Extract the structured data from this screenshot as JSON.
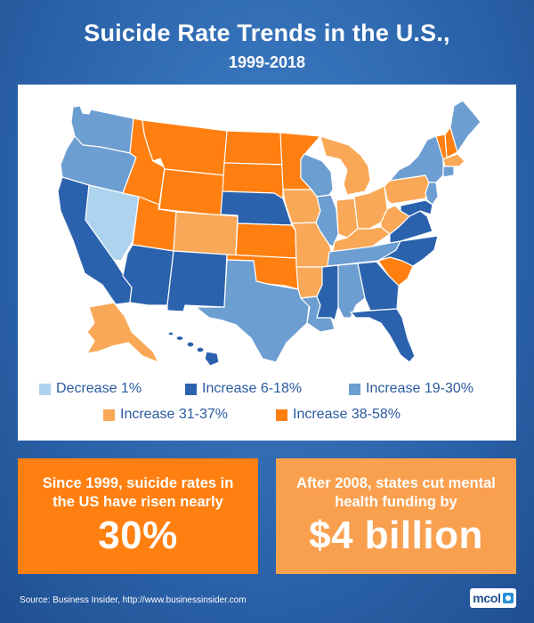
{
  "title": "Suicide Rate Trends in the U.S.,",
  "subtitle": "1999-2018",
  "colors": {
    "decrease": "#aed3ee",
    "increase_6_18": "#2b62ae",
    "increase_19_30": "#6c9ed2",
    "increase_31_37": "#f9a857",
    "increase_38_58": "#ff7f10"
  },
  "legend": [
    {
      "label": "Decrease 1%",
      "category": "decrease"
    },
    {
      "label": "Increase 6-18%",
      "category": "increase_6_18"
    },
    {
      "label": "Increase 19-30%",
      "category": "increase_19_30"
    },
    {
      "label": "Increase 31-37%",
      "category": "increase_31_37"
    },
    {
      "label": "Increase 38-58%",
      "category": "increase_38_58"
    }
  ],
  "states": [
    {
      "name": "washington",
      "category": "increase_19_30"
    },
    {
      "name": "oregon",
      "category": "increase_19_30"
    },
    {
      "name": "california",
      "category": "increase_6_18"
    },
    {
      "name": "nevada",
      "category": "decrease"
    },
    {
      "name": "idaho",
      "category": "increase_38_58"
    },
    {
      "name": "montana",
      "category": "increase_38_58"
    },
    {
      "name": "wyoming",
      "category": "increase_38_58"
    },
    {
      "name": "utah",
      "category": "increase_38_58"
    },
    {
      "name": "arizona",
      "category": "increase_6_18"
    },
    {
      "name": "colorado",
      "category": "increase_31_37"
    },
    {
      "name": "new-mexico",
      "category": "increase_6_18"
    },
    {
      "name": "north-dakota",
      "category": "increase_38_58"
    },
    {
      "name": "south-dakota",
      "category": "increase_38_58"
    },
    {
      "name": "nebraska",
      "category": "increase_6_18"
    },
    {
      "name": "kansas",
      "category": "increase_38_58"
    },
    {
      "name": "oklahoma",
      "category": "increase_38_58"
    },
    {
      "name": "texas",
      "category": "increase_19_30"
    },
    {
      "name": "minnesota",
      "category": "increase_38_58"
    },
    {
      "name": "iowa",
      "category": "increase_31_37"
    },
    {
      "name": "missouri",
      "category": "increase_31_37"
    },
    {
      "name": "arkansas",
      "category": "increase_31_37"
    },
    {
      "name": "louisiana",
      "category": "increase_19_30"
    },
    {
      "name": "wisconsin",
      "category": "increase_19_30"
    },
    {
      "name": "illinois",
      "category": "increase_19_30"
    },
    {
      "name": "michigan",
      "category": "increase_31_37"
    },
    {
      "name": "indiana",
      "category": "increase_31_37"
    },
    {
      "name": "ohio",
      "category": "increase_31_37"
    },
    {
      "name": "kentucky",
      "category": "increase_31_37"
    },
    {
      "name": "tennessee",
      "category": "increase_19_30"
    },
    {
      "name": "mississippi",
      "category": "increase_6_18"
    },
    {
      "name": "alabama",
      "category": "increase_19_30"
    },
    {
      "name": "georgia",
      "category": "increase_6_18"
    },
    {
      "name": "florida",
      "category": "increase_6_18"
    },
    {
      "name": "south-carolina",
      "category": "increase_38_58"
    },
    {
      "name": "north-carolina",
      "category": "increase_6_18"
    },
    {
      "name": "virginia",
      "category": "increase_6_18"
    },
    {
      "name": "west-virginia",
      "category": "increase_31_37"
    },
    {
      "name": "pennsylvania",
      "category": "increase_31_37"
    },
    {
      "name": "new-york",
      "category": "increase_19_30"
    },
    {
      "name": "new-jersey",
      "category": "increase_19_30"
    },
    {
      "name": "maryland",
      "category": "increase_6_18"
    },
    {
      "name": "vermont",
      "category": "increase_38_58"
    },
    {
      "name": "new-hampshire",
      "category": "increase_38_58"
    },
    {
      "name": "maine",
      "category": "increase_19_30"
    },
    {
      "name": "massachusetts",
      "category": "increase_31_37"
    },
    {
      "name": "connecticut",
      "category": "increase_19_30"
    },
    {
      "name": "alaska",
      "category": "increase_31_37"
    },
    {
      "name": "hawaii",
      "category": "increase_6_18"
    }
  ],
  "stats": {
    "left_text": "Since 1999, suicide rates in the US have risen nearly",
    "left_value": "30%",
    "right_text": "After 2008, states cut mental health funding by",
    "right_value": "$4 billion"
  },
  "source": "Source:  Business Insider, http://www.businessinsider.com",
  "logo_text": "mcol"
}
